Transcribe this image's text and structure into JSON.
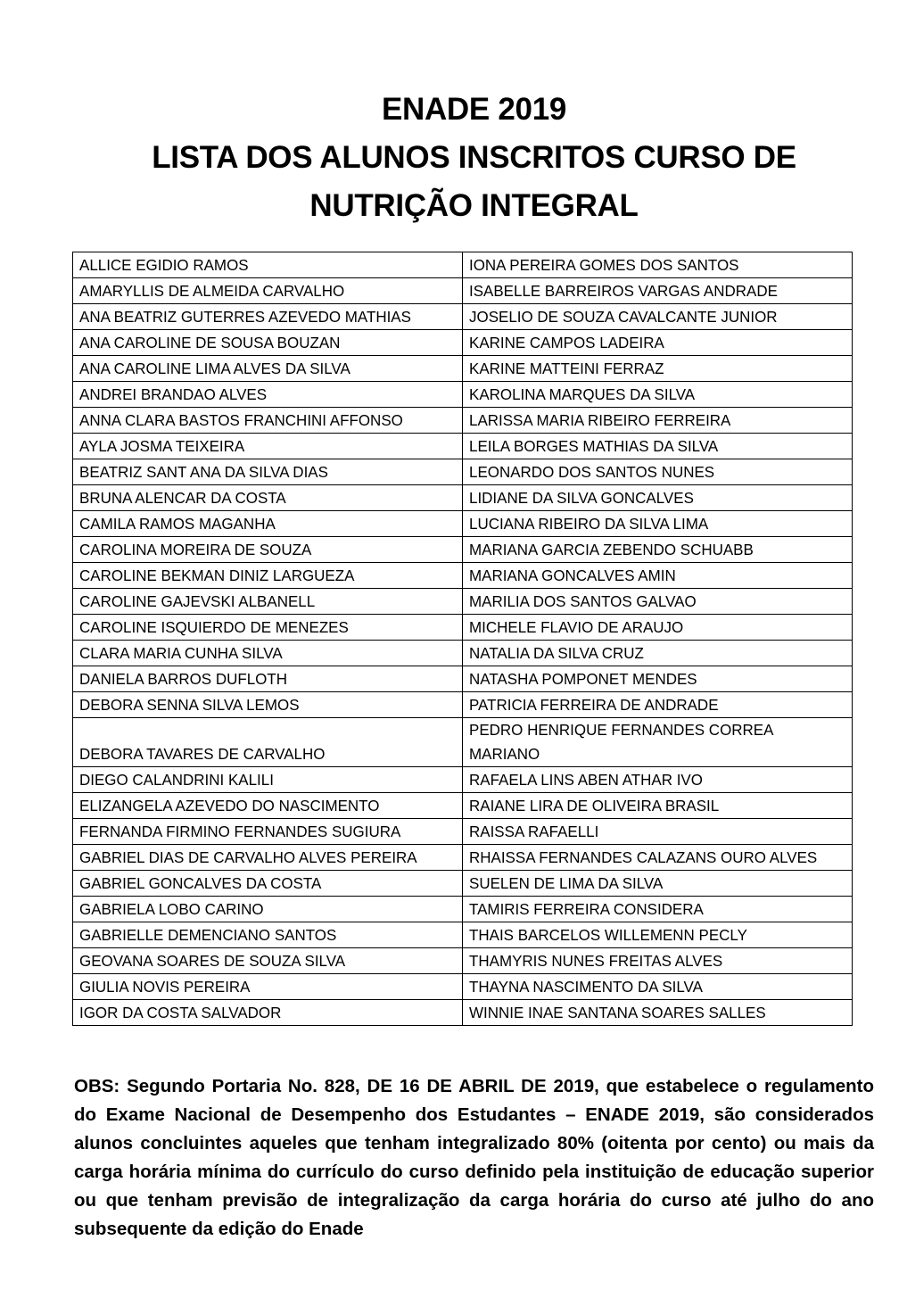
{
  "title": {
    "line1": "ENADE 2019",
    "line2": "LISTA DOS ALUNOS INSCRITOS CURSO DE",
    "line3": "NUTRIÇÃO INTEGRAL"
  },
  "rows": [
    [
      "ALLICE EGIDIO RAMOS",
      "IONA PEREIRA GOMES DOS SANTOS"
    ],
    [
      "AMARYLLIS DE ALMEIDA CARVALHO",
      "ISABELLE BARREIROS VARGAS ANDRADE"
    ],
    [
      "ANA BEATRIZ GUTERRES AZEVEDO MATHIAS",
      "JOSELIO DE SOUZA CAVALCANTE JUNIOR"
    ],
    [
      "ANA CAROLINE DE SOUSA BOUZAN",
      "KARINE CAMPOS LADEIRA"
    ],
    [
      "ANA CAROLINE LIMA ALVES DA SILVA",
      "KARINE MATTEINI FERRAZ"
    ],
    [
      "ANDREI BRANDAO ALVES",
      "KAROLINA MARQUES DA SILVA"
    ],
    [
      "ANNA CLARA BASTOS FRANCHINI AFFONSO",
      "LARISSA MARIA RIBEIRO FERREIRA"
    ],
    [
      "AYLA JOSMA TEIXEIRA",
      "LEILA BORGES MATHIAS DA SILVA"
    ],
    [
      "BEATRIZ SANT ANA DA SILVA DIAS",
      "LEONARDO DOS SANTOS NUNES"
    ],
    [
      "BRUNA ALENCAR DA COSTA",
      "LIDIANE DA SILVA GONCALVES"
    ],
    [
      "CAMILA RAMOS MAGANHA",
      "LUCIANA RIBEIRO DA SILVA LIMA"
    ],
    [
      "CAROLINA MOREIRA DE SOUZA",
      "MARIANA GARCIA ZEBENDO SCHUABB"
    ],
    [
      "CAROLINE BEKMAN DINIZ LARGUEZA",
      "MARIANA GONCALVES AMIN"
    ],
    [
      "CAROLINE GAJEVSKI ALBANELL",
      "MARILIA DOS SANTOS GALVAO"
    ],
    [
      "CAROLINE ISQUIERDO DE MENEZES",
      "MICHELE FLAVIO DE ARAUJO"
    ],
    [
      "CLARA MARIA CUNHA SILVA",
      "NATALIA DA SILVA CRUZ"
    ],
    [
      "DANIELA BARROS DUFLOTH",
      "NATASHA POMPONET MENDES"
    ],
    [
      "DEBORA SENNA SILVA LEMOS",
      "PATRICIA FERREIRA DE ANDRADE"
    ],
    [
      "DEBORA TAVARES DE CARVALHO",
      "PEDRO HENRIQUE FERNANDES CORREA MARIANO"
    ],
    [
      "DIEGO CALANDRINI KALILI",
      "RAFAELA LINS ABEN ATHAR IVO"
    ],
    [
      "ELIZANGELA AZEVEDO DO NASCIMENTO",
      "RAIANE LIRA DE OLIVEIRA BRASIL"
    ],
    [
      "FERNANDA FIRMINO FERNANDES SUGIURA",
      "RAISSA RAFAELLI"
    ],
    [
      "GABRIEL DIAS DE CARVALHO ALVES PEREIRA",
      "RHAISSA FERNANDES CALAZANS OURO ALVES"
    ],
    [
      "GABRIEL GONCALVES DA COSTA",
      "SUELEN DE LIMA DA SILVA"
    ],
    [
      "GABRIELA LOBO CARINO",
      "TAMIRIS FERREIRA CONSIDERA"
    ],
    [
      "GABRIELLE DEMENCIANO SANTOS",
      "THAIS BARCELOS WILLEMENN PECLY"
    ],
    [
      "GEOVANA SOARES DE SOUZA SILVA",
      "THAMYRIS NUNES FREITAS ALVES"
    ],
    [
      "GIULIA NOVIS PEREIRA",
      "THAYNA NASCIMENTO DA SILVA"
    ],
    [
      "IGOR DA COSTA SALVADOR",
      "WINNIE INAE SANTANA SOARES SALLES"
    ]
  ],
  "obs": "OBS: Segundo Portaria No. 828, DE 16 DE ABRIL DE 2019, que estabelece o regulamento do Exame Nacional de Desempenho dos Estudantes – ENADE 2019, são considerados alunos concluintes aqueles que tenham integralizado 80% (oitenta por cento) ou mais da carga horária mínima do currículo do curso definido pela instituição de educação superior ou que tenham previsão de integralização da carga horária do curso até julho do ano subsequente da edição do Enade"
}
